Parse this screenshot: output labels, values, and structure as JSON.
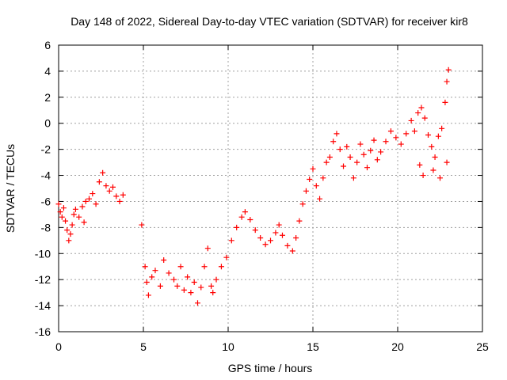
{
  "chart_data": {
    "type": "scatter",
    "title": "Day 148 of 2022, Sidereal Day-to-day VTEC variation (SDTVAR) for receiver kir8",
    "xlabel": "GPS time / hours",
    "ylabel": "SDTVAR / TECUs",
    "xlim": [
      0,
      25
    ],
    "ylim": [
      -16,
      6
    ],
    "xticks": [
      0,
      5,
      10,
      15,
      20,
      25
    ],
    "yticks": [
      -16,
      -14,
      -12,
      -10,
      -8,
      -6,
      -4,
      -2,
      0,
      2,
      4,
      6
    ],
    "grid": true,
    "marker": "+",
    "colors": {
      "series": "#ff0000",
      "grid": "#a0a0a0",
      "axis": "#000000"
    },
    "series": [
      {
        "name": "SDTVAR",
        "points": [
          [
            0.0,
            -6.2
          ],
          [
            0.1,
            -6.8
          ],
          [
            0.2,
            -7.2
          ],
          [
            0.3,
            -6.5
          ],
          [
            0.4,
            -7.5
          ],
          [
            0.5,
            -8.2
          ],
          [
            0.6,
            -9.0
          ],
          [
            0.7,
            -8.5
          ],
          [
            0.8,
            -7.8
          ],
          [
            0.9,
            -7.0
          ],
          [
            1.0,
            -6.6
          ],
          [
            1.2,
            -7.2
          ],
          [
            1.4,
            -6.4
          ],
          [
            1.5,
            -7.6
          ],
          [
            1.6,
            -6.0
          ],
          [
            1.8,
            -5.8
          ],
          [
            2.0,
            -5.4
          ],
          [
            2.2,
            -6.2
          ],
          [
            2.4,
            -4.5
          ],
          [
            2.6,
            -3.8
          ],
          [
            2.8,
            -4.8
          ],
          [
            3.0,
            -5.2
          ],
          [
            3.2,
            -4.9
          ],
          [
            3.4,
            -5.6
          ],
          [
            3.6,
            -6.0
          ],
          [
            3.8,
            -5.5
          ],
          [
            4.9,
            -7.8
          ],
          [
            5.1,
            -11.0
          ],
          [
            5.2,
            -12.2
          ],
          [
            5.3,
            -13.2
          ],
          [
            5.5,
            -11.8
          ],
          [
            5.7,
            -11.3
          ],
          [
            6.0,
            -12.5
          ],
          [
            6.2,
            -10.5
          ],
          [
            6.5,
            -11.5
          ],
          [
            6.8,
            -12.0
          ],
          [
            7.0,
            -12.5
          ],
          [
            7.2,
            -11.0
          ],
          [
            7.4,
            -12.8
          ],
          [
            7.6,
            -11.8
          ],
          [
            7.8,
            -13.0
          ],
          [
            8.0,
            -12.2
          ],
          [
            8.2,
            -13.8
          ],
          [
            8.4,
            -12.6
          ],
          [
            8.6,
            -11.0
          ],
          [
            8.8,
            -9.6
          ],
          [
            9.0,
            -12.5
          ],
          [
            9.1,
            -13.0
          ],
          [
            9.3,
            -12.0
          ],
          [
            9.6,
            -11.0
          ],
          [
            9.9,
            -10.3
          ],
          [
            10.2,
            -9.0
          ],
          [
            10.5,
            -8.0
          ],
          [
            10.8,
            -7.2
          ],
          [
            11.0,
            -6.8
          ],
          [
            11.3,
            -7.4
          ],
          [
            11.6,
            -8.2
          ],
          [
            11.9,
            -8.8
          ],
          [
            12.2,
            -9.3
          ],
          [
            12.5,
            -9.0
          ],
          [
            12.8,
            -8.4
          ],
          [
            13.0,
            -7.8
          ],
          [
            13.2,
            -8.6
          ],
          [
            13.5,
            -9.4
          ],
          [
            13.8,
            -9.8
          ],
          [
            14.0,
            -8.8
          ],
          [
            14.2,
            -7.5
          ],
          [
            14.4,
            -6.2
          ],
          [
            14.6,
            -5.2
          ],
          [
            14.8,
            -4.3
          ],
          [
            15.0,
            -3.5
          ],
          [
            15.2,
            -4.8
          ],
          [
            15.4,
            -5.8
          ],
          [
            15.6,
            -4.2
          ],
          [
            15.8,
            -3.0
          ],
          [
            16.0,
            -2.6
          ],
          [
            16.2,
            -1.4
          ],
          [
            16.4,
            -0.8
          ],
          [
            16.6,
            -2.0
          ],
          [
            16.8,
            -3.3
          ],
          [
            17.0,
            -1.8
          ],
          [
            17.2,
            -2.6
          ],
          [
            17.4,
            -4.2
          ],
          [
            17.6,
            -3.0
          ],
          [
            17.8,
            -1.6
          ],
          [
            18.0,
            -2.4
          ],
          [
            18.2,
            -3.4
          ],
          [
            18.4,
            -2.1
          ],
          [
            18.6,
            -1.3
          ],
          [
            18.8,
            -2.8
          ],
          [
            19.0,
            -2.2
          ],
          [
            19.3,
            -1.4
          ],
          [
            19.6,
            -0.6
          ],
          [
            19.9,
            -1.1
          ],
          [
            20.2,
            -1.6
          ],
          [
            20.5,
            -0.8
          ],
          [
            20.8,
            0.2
          ],
          [
            21.0,
            -0.6
          ],
          [
            21.2,
            0.8
          ],
          [
            21.4,
            1.2
          ],
          [
            21.6,
            0.4
          ],
          [
            21.8,
            -0.9
          ],
          [
            22.0,
            -1.8
          ],
          [
            22.2,
            -2.6
          ],
          [
            22.4,
            -1.0
          ],
          [
            22.6,
            -0.4
          ],
          [
            22.8,
            1.6
          ],
          [
            22.9,
            3.2
          ],
          [
            23.0,
            4.1
          ],
          [
            21.3,
            -3.2
          ],
          [
            21.5,
            -4.0
          ],
          [
            22.1,
            -3.6
          ],
          [
            22.5,
            -4.2
          ],
          [
            22.9,
            -3.0
          ]
        ]
      }
    ]
  }
}
